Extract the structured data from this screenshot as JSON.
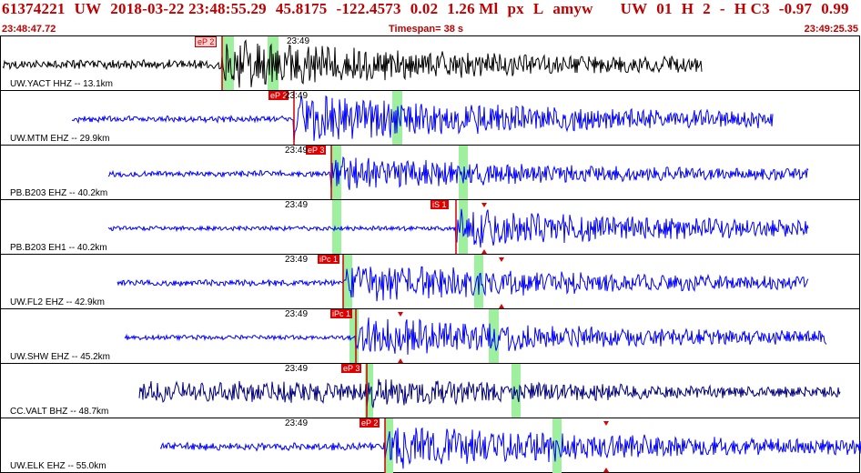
{
  "header": {
    "event_id": "61374221",
    "network": "UW",
    "datetime": "2018-03-22 23:48:55.29",
    "lat": "45.8175",
    "lon": "-122.4573",
    "depth": "0.02",
    "magnitude": "1.26 Ml",
    "px": "px",
    "L": "L",
    "author": "amyw",
    "net2": "UW",
    "code": "01",
    "h": "H",
    "n": "2",
    "dash": "-",
    "hc": "H C3",
    "v1": "-0.97",
    "v2": "0.99",
    "start_time": "23:48:47.72",
    "timespan": "Timespan=  38 s",
    "end_time": "23:49:25.35"
  },
  "channels": [
    {
      "label": "UW.YACT HHZ -- 13.1km",
      "tick": "23:49",
      "phase": "eP 2",
      "color": "#000000"
    },
    {
      "label": "UW.MTM EHZ -- 29.9km",
      "tick": "23:49",
      "phase": "eP 2",
      "color": "#0000ff"
    },
    {
      "label": "PB.B203 EHZ -- 40.2km",
      "tick": "23:49",
      "phase": "eP 3",
      "color": "#0000ff"
    },
    {
      "label": "PB.B203 EH1 -- 40.2km",
      "tick": "23:49",
      "phase": "iS 1",
      "color": "#0000ff"
    },
    {
      "label": "UW.FL2 EHZ -- 42.9km",
      "tick": "23:49",
      "phase": "iPc 1",
      "color": "#0000ff"
    },
    {
      "label": "UW.SHW EHZ -- 45.2km",
      "tick": "23:49",
      "phase": "iPc 1",
      "color": "#0000ff"
    },
    {
      "label": "CC.VALT BHZ -- 48.7km",
      "tick": "23:49",
      "phase": "eP 3",
      "color": "#000080"
    },
    {
      "label": "UW.ELK EHZ -- 55.0km",
      "tick": "23:49",
      "phase": "eP 2",
      "color": "#0000ff"
    }
  ]
}
